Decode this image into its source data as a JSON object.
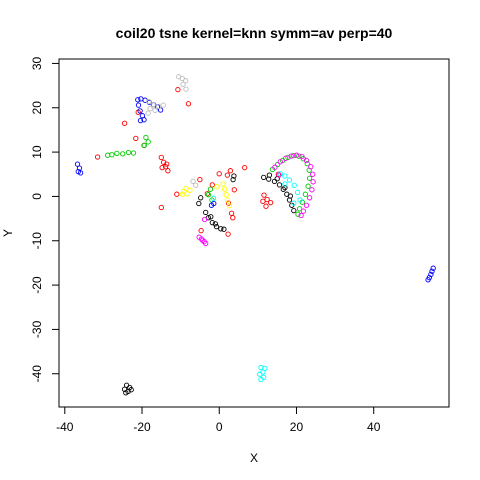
{
  "chart_data": {
    "type": "scatter",
    "title": "coil20 tsne kernel=knn symm=av perp=40",
    "xlabel": "X",
    "ylabel": "Y",
    "xlim": [
      -41.5,
      59.5
    ],
    "ylim": [
      -47.5,
      31.0
    ],
    "xticks": [
      -40,
      -20,
      0,
      20,
      40
    ],
    "yticks": [
      -40,
      -30,
      -20,
      -10,
      0,
      10,
      20,
      30
    ],
    "grid": false,
    "legend": "none",
    "marker": "open circle",
    "colors": {
      "black": "#000000",
      "red": "#ff0000",
      "green": "#00cd00",
      "blue": "#0000ff",
      "cyan": "#00ffff",
      "magenta": "#ff00ff",
      "yellow": "#ffff00",
      "gray": "#bebebe"
    },
    "series": [
      {
        "color": "black",
        "points": [
          [
            -24,
            -42.6
          ],
          [
            -23.2,
            -43.1
          ],
          [
            -24.5,
            -43.5
          ],
          [
            -23.6,
            -44
          ],
          [
            -22.8,
            -43.6
          ],
          [
            -24.2,
            -44.3
          ],
          [
            -3.5,
            -3.6
          ],
          [
            -2.8,
            -4.8
          ],
          [
            -1.8,
            -5.9
          ],
          [
            -0.7,
            -6.8
          ],
          [
            0.4,
            -7.3
          ],
          [
            1.2,
            -7.4
          ],
          [
            -2.2,
            -4.6
          ],
          [
            -1,
            -6.2
          ],
          [
            3.6,
            3.8
          ],
          [
            3.8,
            4.6
          ],
          [
            11.5,
            4.3
          ],
          [
            12.8,
            3.9
          ],
          [
            14.3,
            3.4
          ],
          [
            15.6,
            2.6
          ],
          [
            16.6,
            1.6
          ],
          [
            17.5,
            0.5
          ],
          [
            18.2,
            -0.8
          ],
          [
            18.8,
            -2
          ],
          [
            19.3,
            -3.2
          ],
          [
            13,
            4.8
          ],
          [
            15,
            4
          ],
          [
            17,
            2
          ],
          [
            18.4,
            0.1
          ],
          [
            -5.3,
            -1.6
          ],
          [
            -4.8,
            -0.3
          ]
        ]
      },
      {
        "color": "red",
        "points": [
          [
            -15,
            8.8
          ],
          [
            -14.4,
            7.7
          ],
          [
            -13.9,
            6.7
          ],
          [
            -13.3,
            5.8
          ],
          [
            -14.8,
            6.5
          ],
          [
            -13.6,
            7.3
          ],
          [
            11.6,
            0.3
          ],
          [
            12.4,
            -0.7
          ],
          [
            13.3,
            -1.4
          ],
          [
            12.1,
            -2.2
          ],
          [
            11.3,
            -1.1
          ],
          [
            3.2,
            -3.8
          ],
          [
            3.5,
            -4.8
          ],
          [
            2.4,
            -1.5
          ],
          [
            2.1,
            4.8
          ],
          [
            2.9,
            5.8
          ],
          [
            -24.5,
            16.5
          ],
          [
            -21.6,
            13.1
          ],
          [
            -21,
            19
          ],
          [
            -19.5,
            11.5
          ],
          [
            -31.5,
            8.9
          ],
          [
            -10.7,
            24.1
          ],
          [
            -8,
            20.9
          ],
          [
            -5,
            3.8
          ],
          [
            -3.1,
            0.6
          ],
          [
            0,
            5.1
          ],
          [
            3.9,
            1.5
          ],
          [
            -4.7,
            -7.7
          ],
          [
            2.3,
            -8.5
          ],
          [
            15.3,
            5
          ],
          [
            6.6,
            6.5
          ],
          [
            -15,
            -2.5
          ],
          [
            -11,
            0.5
          ],
          [
            -1.8,
            2.6
          ]
        ]
      },
      {
        "color": "green",
        "points": [
          [
            -26.5,
            9.7
          ],
          [
            -25,
            9.6
          ],
          [
            -23.5,
            9.9
          ],
          [
            -22.2,
            9.8
          ],
          [
            -27.8,
            9.4
          ],
          [
            -28.9,
            9.3
          ],
          [
            -19,
            13.3
          ],
          [
            -18.4,
            12.3
          ],
          [
            -19.4,
            11.5
          ],
          [
            13.8,
            6.1
          ],
          [
            15.1,
            7.2
          ],
          [
            16.4,
            8.1
          ],
          [
            17.8,
            8.8
          ],
          [
            19.2,
            9.2
          ],
          [
            20.6,
            9.1
          ],
          [
            21.8,
            8.5
          ],
          [
            22.8,
            7.4
          ],
          [
            23.3,
            5.9
          ],
          [
            23.4,
            4.1
          ],
          [
            23,
            2.3
          ],
          [
            22.3,
            0.5
          ],
          [
            21.5,
            -1.3
          ],
          [
            20.8,
            -2.8
          ],
          [
            20.4,
            -4
          ],
          [
            -2.3,
            1.6
          ],
          [
            -2.8,
            0.4
          ],
          [
            -1.9,
            -0.8
          ]
        ]
      },
      {
        "color": "blue",
        "points": [
          [
            -36.7,
            7.3
          ],
          [
            -36.2,
            6.4
          ],
          [
            -36.5,
            5.6
          ],
          [
            -35.9,
            5.3
          ],
          [
            -21.1,
            21.8
          ],
          [
            -20.3,
            22
          ],
          [
            -19.2,
            21.7
          ],
          [
            -18.1,
            21.2
          ],
          [
            -17,
            20.7
          ],
          [
            -16,
            20.2
          ],
          [
            -15.2,
            19.5
          ],
          [
            -20.9,
            20.6
          ],
          [
            -20.5,
            19.3
          ],
          [
            -19.9,
            18.2
          ],
          [
            -19.5,
            17.3
          ],
          [
            -20.4,
            17.1
          ],
          [
            55.4,
            -16.2
          ],
          [
            55.1,
            -16.9
          ],
          [
            54.8,
            -17.6
          ],
          [
            54.4,
            -18.3
          ],
          [
            54.1,
            -18.8
          ],
          [
            -2,
            -2
          ],
          [
            -1.4,
            -1.6
          ]
        ]
      },
      {
        "color": "cyan",
        "points": [
          [
            10.8,
            -38.6
          ],
          [
            11.8,
            -38.8
          ],
          [
            11.3,
            -39.6
          ],
          [
            10.5,
            -40.1
          ],
          [
            11.5,
            -40.8
          ],
          [
            10.8,
            -41.3
          ],
          [
            15.8,
            5.1
          ],
          [
            17,
            4.6
          ],
          [
            18.2,
            3.7
          ],
          [
            19.4,
            2.5
          ],
          [
            20.3,
            0.9
          ],
          [
            20.9,
            -0.8
          ],
          [
            19.3,
            -1.5
          ],
          [
            17,
            2.8
          ],
          [
            -1.5,
            -0.4
          ]
        ]
      },
      {
        "color": "magenta",
        "points": [
          [
            -5.2,
            -9.2
          ],
          [
            -4.3,
            -9.9
          ],
          [
            -3.5,
            -10.6
          ],
          [
            -4.6,
            -9.6
          ],
          [
            -3.9,
            -10.2
          ],
          [
            14.4,
            6.6
          ],
          [
            15.8,
            7.8
          ],
          [
            17.2,
            8.6
          ],
          [
            18.6,
            9.1
          ],
          [
            20,
            9.3
          ],
          [
            21.4,
            9
          ],
          [
            22.6,
            8.1
          ],
          [
            23.7,
            6.7
          ],
          [
            24.2,
            5
          ],
          [
            24.3,
            3.3
          ],
          [
            24,
            1.5
          ],
          [
            23.4,
            -0.3
          ],
          [
            22.6,
            -2
          ],
          [
            21.8,
            -3.3
          ],
          [
            21.2,
            -4.3
          ],
          [
            15.5,
            4.8
          ],
          [
            -3.8,
            -5.2
          ]
        ]
      },
      {
        "color": "yellow",
        "points": [
          [
            -8.6,
            1.8
          ],
          [
            -9.2,
            1.2
          ],
          [
            -8.3,
            0.6
          ],
          [
            -7.6,
            1.4
          ],
          [
            1,
            2.8
          ],
          [
            1.4,
            1.6
          ],
          [
            1.8,
            0.4
          ],
          [
            2.1,
            -0.8
          ],
          [
            2.6,
            -2.1
          ],
          [
            -0.6,
            2.2
          ],
          [
            -9.5,
            0.5
          ]
        ]
      },
      {
        "color": "gray",
        "points": [
          [
            -10.5,
            27
          ],
          [
            -9.6,
            26.6
          ],
          [
            -8.7,
            26.1
          ],
          [
            -9.4,
            25.3
          ],
          [
            -8.6,
            24.2
          ],
          [
            -18.2,
            21.4
          ],
          [
            -17.1,
            20.7
          ],
          [
            -15.7,
            20.3
          ],
          [
            -14.5,
            20.6
          ],
          [
            -16.6,
            19.4
          ],
          [
            -17.9,
            19.8
          ],
          [
            -18.4,
            18.8
          ],
          [
            -6.8,
            3.4
          ],
          [
            -6.1,
            2.5
          ]
        ]
      }
    ]
  }
}
